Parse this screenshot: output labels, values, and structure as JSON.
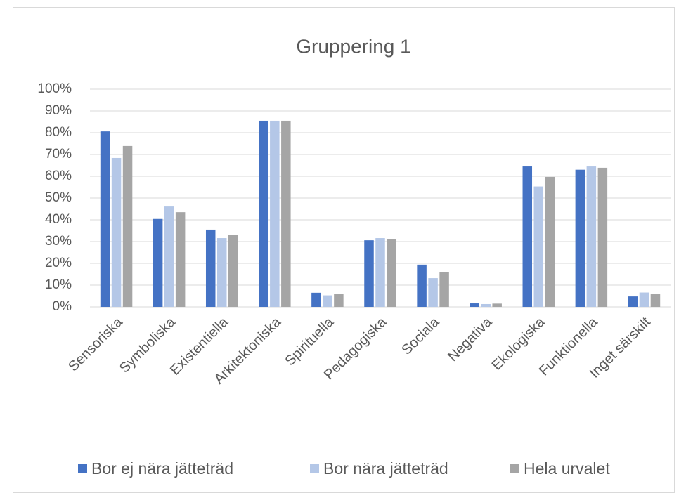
{
  "chart_data": {
    "type": "bar",
    "title": "Gruppering 1",
    "categories": [
      "Sensoriska",
      "Symboliska",
      "Existentiella",
      "Arkitektoniska",
      "Spirituella",
      "Pedagogiska",
      "Sociala",
      "Negativa",
      "Ekologiska",
      "Funktionella",
      "Inget särskilt"
    ],
    "series": [
      {
        "name": "Bor ej nära jätteträd",
        "color": "#4472c4",
        "values": [
          80.6,
          40.4,
          35.5,
          85.5,
          6.5,
          30.6,
          19.4,
          1.6,
          64.5,
          63,
          4.8
        ]
      },
      {
        "name": "Bor nära jätteträd",
        "color": "#b4c7e7",
        "values": [
          68.4,
          46.1,
          31.6,
          85.5,
          5.3,
          31.6,
          13.2,
          1.3,
          55.3,
          64.5,
          6.6
        ]
      },
      {
        "name": "Hela urvalet",
        "color": "#a5a5a5",
        "values": [
          73.9,
          43.5,
          33.2,
          85.5,
          5.8,
          31.2,
          16.1,
          1.5,
          59.7,
          63.9,
          5.8
        ]
      }
    ],
    "ylim": [
      0,
      100
    ],
    "yticks": [
      {
        "value": 0,
        "label": "0%"
      },
      {
        "value": 10,
        "label": "10%"
      },
      {
        "value": 20,
        "label": "20%"
      },
      {
        "value": 30,
        "label": "30%"
      },
      {
        "value": 40,
        "label": "40%"
      },
      {
        "value": 50,
        "label": "50%"
      },
      {
        "value": 60,
        "label": "60%"
      },
      {
        "value": 70,
        "label": "70%"
      },
      {
        "value": 80,
        "label": "80%"
      },
      {
        "value": 90,
        "label": "90%"
      },
      {
        "value": 100,
        "label": "100%"
      }
    ],
    "grid": true,
    "legend": "bottom"
  }
}
